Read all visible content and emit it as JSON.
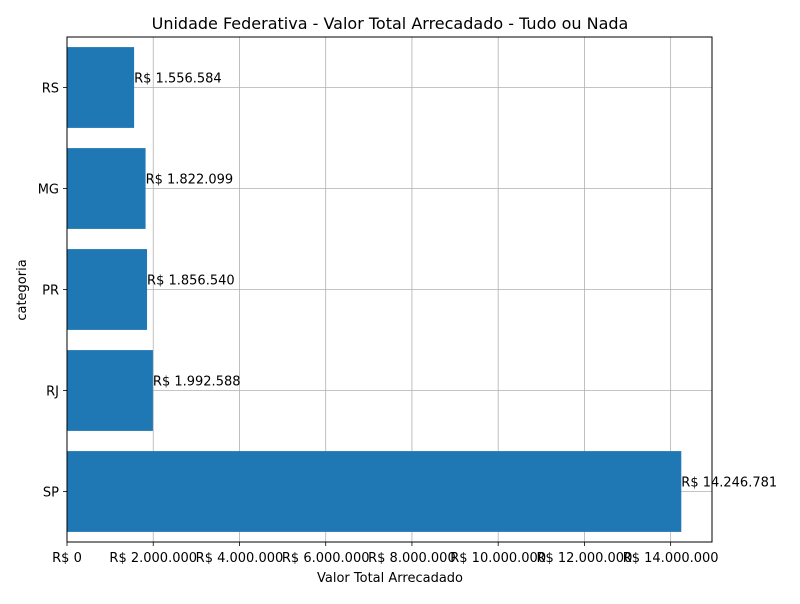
{
  "chart_data": {
    "type": "bar",
    "orientation": "horizontal",
    "title": "Unidade Federativa - Valor Total Arrecadado - Tudo ou Nada",
    "xlabel": "Valor Total Arrecadado",
    "ylabel": "categoria",
    "categories": [
      "SP",
      "RJ",
      "PR",
      "MG",
      "RS"
    ],
    "values": [
      14246781,
      1992588,
      1856540,
      1822099,
      1556584
    ],
    "data_labels": [
      "R$ 14.246.781",
      "R$ 1.992.588",
      "R$ 1.856.540",
      "R$ 1.822.099",
      "R$ 1.556.584"
    ],
    "xlim": [
      0,
      14959120
    ],
    "x_ticks": [
      0,
      2000000,
      4000000,
      6000000,
      8000000,
      10000000,
      12000000,
      14000000
    ],
    "x_tick_labels": [
      "R$ 0",
      "R$ 2.000.000",
      "R$ 4.000.000",
      "R$ 6.000.000",
      "R$ 8.000.000",
      "R$ 10.000.000",
      "R$ 12.000.000",
      "R$ 14.000.000"
    ],
    "grid": true,
    "legend": "none",
    "bar_color": "#1f77b4",
    "grid_color": "#b0b0b0"
  }
}
